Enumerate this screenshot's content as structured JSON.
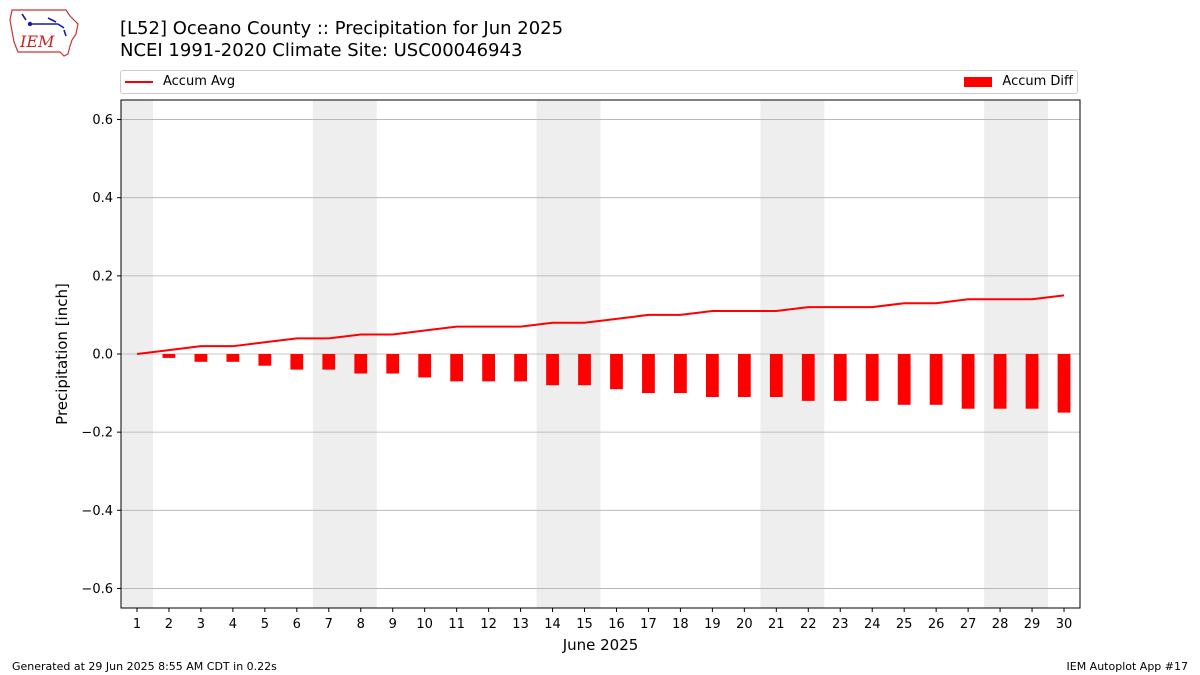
{
  "header": {
    "title_line1": "[L52] Oceano County :: Precipitation for Jun 2025",
    "title_line2": "NCEI 1991-2020 Climate Site: USC00046943"
  },
  "logo": {
    "text": "IEM",
    "icon": "iem-iowa-logo-icon"
  },
  "legend": {
    "line_label": "Accum Avg",
    "bar_label": "Accum Diff"
  },
  "footer": {
    "generated": "Generated at 29 Jun 2025 8:55 AM CDT in 0.22s",
    "app": "IEM Autoplot App #17"
  },
  "colors": {
    "series": "#ff0000",
    "weekend_band": "#eeeeee",
    "grid": "#b0b0b0"
  },
  "chart_data": {
    "type": "bar",
    "xlabel": "June 2025",
    "ylabel": "Precipitation [inch]",
    "ylim": [
      -0.65,
      0.65
    ],
    "xlim": [
      0.5,
      30.5
    ],
    "yticks": [
      -0.6,
      -0.4,
      -0.2,
      0.0,
      0.2,
      0.4,
      0.6
    ],
    "ytick_labels": [
      "−0.6",
      "−0.4",
      "−0.2",
      "0.0",
      "0.2",
      "0.4",
      "0.6"
    ],
    "grid": "horizontal",
    "legend_position": "top",
    "days": [
      1,
      2,
      3,
      4,
      5,
      6,
      7,
      8,
      9,
      10,
      11,
      12,
      13,
      14,
      15,
      16,
      17,
      18,
      19,
      20,
      21,
      22,
      23,
      24,
      25,
      26,
      27,
      28,
      29,
      30
    ],
    "weekend_spans": [
      [
        0.5,
        1.5
      ],
      [
        6.5,
        8.5
      ],
      [
        13.5,
        15.5
      ],
      [
        20.5,
        22.5
      ],
      [
        27.5,
        29.5
      ]
    ],
    "series": [
      {
        "name": "Accum Avg",
        "type": "line",
        "values": [
          0.0,
          0.01,
          0.02,
          0.02,
          0.03,
          0.04,
          0.04,
          0.05,
          0.05,
          0.06,
          0.07,
          0.07,
          0.07,
          0.08,
          0.08,
          0.09,
          0.1,
          0.1,
          0.11,
          0.11,
          0.11,
          0.12,
          0.12,
          0.12,
          0.13,
          0.13,
          0.14,
          0.14,
          0.14,
          0.15
        ]
      },
      {
        "name": "Accum Diff",
        "type": "bar",
        "values": [
          0.0,
          -0.01,
          -0.02,
          -0.02,
          -0.03,
          -0.04,
          -0.04,
          -0.05,
          -0.05,
          -0.06,
          -0.07,
          -0.07,
          -0.07,
          -0.08,
          -0.08,
          -0.09,
          -0.1,
          -0.1,
          -0.11,
          -0.11,
          -0.11,
          -0.12,
          -0.12,
          -0.12,
          -0.13,
          -0.13,
          -0.14,
          -0.14,
          -0.14,
          -0.15
        ]
      }
    ]
  }
}
